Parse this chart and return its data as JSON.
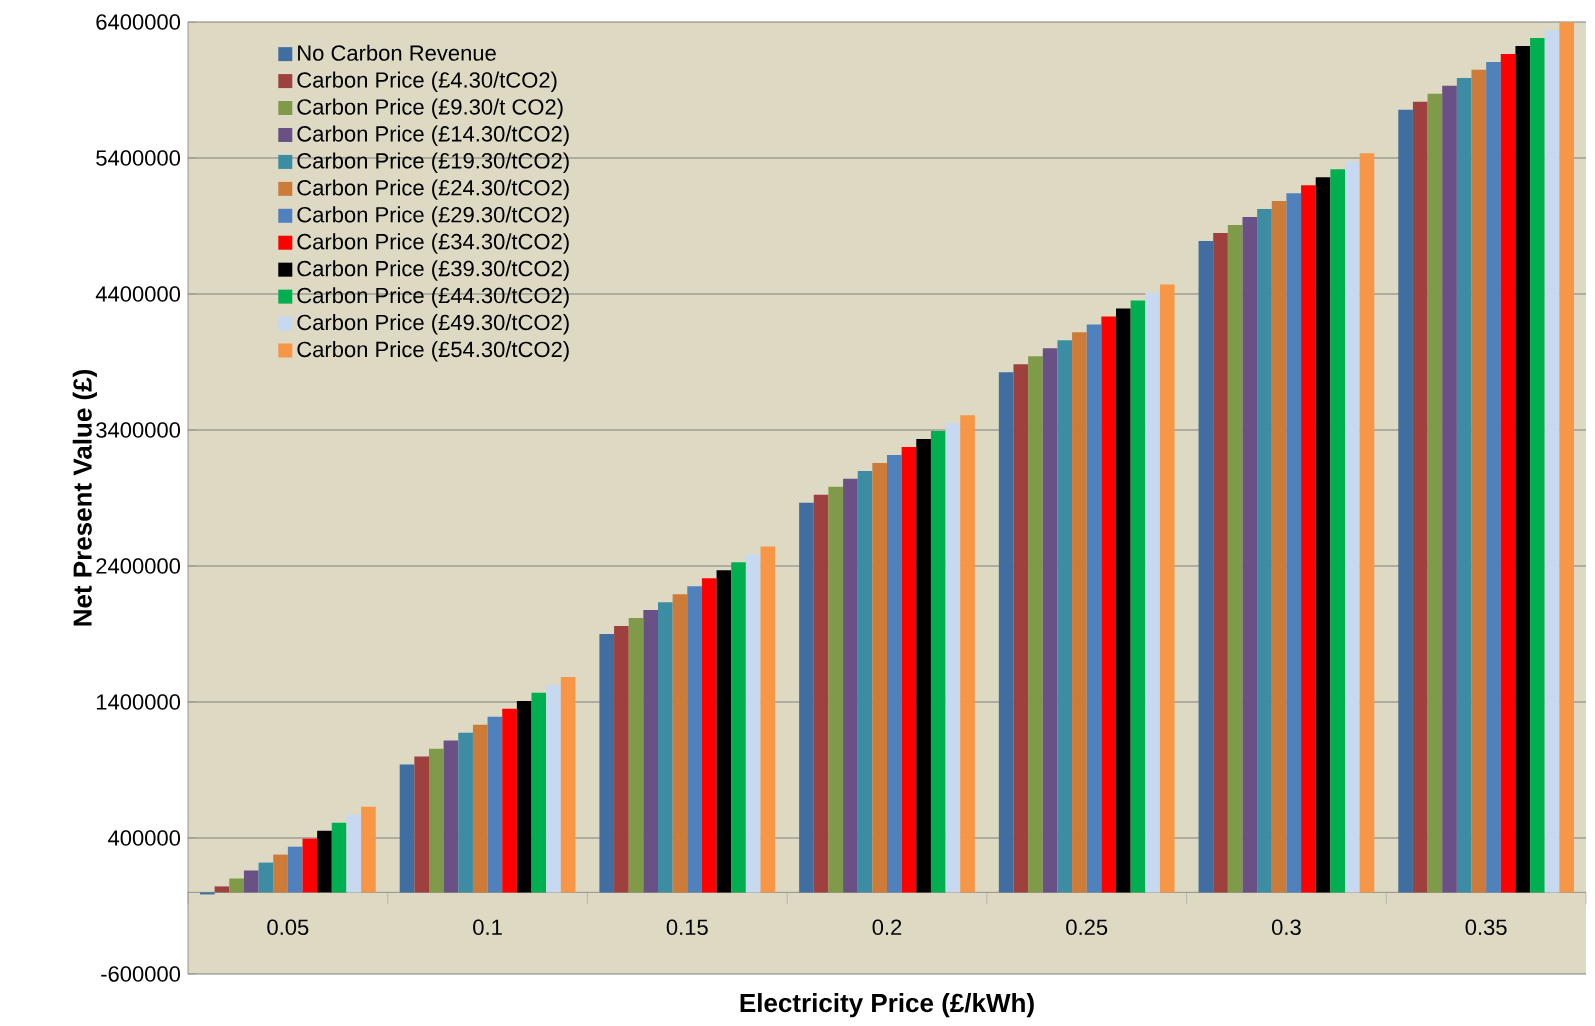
{
  "chart_data": {
    "type": "bar",
    "xlabel": "Electricity Price (£/kWh)",
    "ylabel": "Net Present Value (£)",
    "categories": [
      "0.05",
      "0.1",
      "0.15",
      "0.2",
      "0.25",
      "0.3",
      "0.35"
    ],
    "ylim": [
      -600000,
      6400000
    ],
    "yticks": [
      -600000,
      400000,
      1400000,
      2400000,
      3400000,
      4400000,
      5400000,
      6400000
    ],
    "grid": "y",
    "legend": "top left",
    "series": [
      {
        "name": "No Carbon Revenue",
        "color": "#416ea0",
        "values": [
          -15000,
          940000,
          1900000,
          2865000,
          3825000,
          4790000,
          5755000
        ]
      },
      {
        "name": "Carbon Price (£4.30/tCO2)",
        "color": "#9e413e",
        "values": [
          44000,
          999000,
          1959000,
          2924000,
          3884000,
          4849000,
          5814000
        ]
      },
      {
        "name": "Carbon Price (£9.30/t CO2)",
        "color": "#7f9a48",
        "values": [
          102000,
          1057000,
          2017000,
          2982000,
          3942000,
          4907000,
          5872000
        ]
      },
      {
        "name": "Carbon Price (£14.30/tCO2)",
        "color": "#695185",
        "values": [
          161000,
          1116000,
          2076000,
          3041000,
          4001000,
          4966000,
          5931000
        ]
      },
      {
        "name": "Carbon Price (£19.30/tCO2)",
        "color": "#3c8da3",
        "values": [
          219000,
          1174000,
          2134000,
          3099000,
          4059000,
          5024000,
          5989000
        ]
      },
      {
        "name": "Carbon Price (£24.30/tCO2)",
        "color": "#cc7b38",
        "values": [
          278000,
          1233000,
          2193000,
          3158000,
          4118000,
          5083000,
          6048000
        ]
      },
      {
        "name": "Carbon Price (£29.30/tCO2)",
        "color": "#4f81bd",
        "values": [
          336000,
          1291000,
          2251000,
          3216000,
          4176000,
          5141000,
          6106000
        ]
      },
      {
        "name": "Carbon Price (£34.30/tCO2)",
        "color": "#ff0000",
        "values": [
          395000,
          1350000,
          2310000,
          3275000,
          4235000,
          5200000,
          6165000
        ]
      },
      {
        "name": "Carbon Price (£39.30/tCO2)",
        "color": "#000000",
        "values": [
          453000,
          1408000,
          2368000,
          3333000,
          4293000,
          5258000,
          6223000
        ]
      },
      {
        "name": "Carbon Price (£44.30/tCO2)",
        "color": "#00b050",
        "values": [
          512000,
          1467000,
          2427000,
          3392000,
          4352000,
          5317000,
          6282000
        ]
      },
      {
        "name": "Carbon Price (£49.30/tCO2)",
        "color": "#c6d9f1",
        "values": [
          570000,
          1525000,
          2485000,
          3450000,
          4410000,
          5375000,
          6340000
        ]
      },
      {
        "name": "Carbon Price (£54.30/tCO2)",
        "color": "#f79646",
        "values": [
          629000,
          1584000,
          2544000,
          3509000,
          4469000,
          5434000,
          6399000
        ]
      }
    ]
  }
}
